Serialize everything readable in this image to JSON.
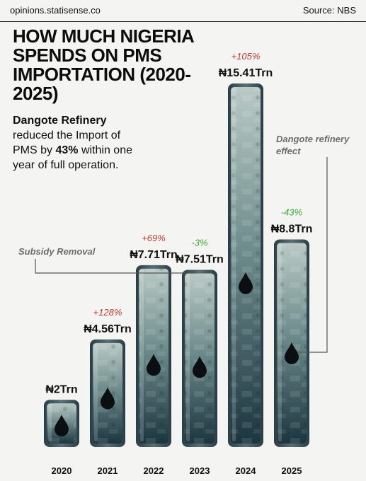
{
  "header": {
    "site": "opinions.statisense.co",
    "source": "Source: NBS"
  },
  "title": "HOW MUCH NIGERIA SPENDS ON PMS IMPORTATION (2020- 2025)",
  "description": {
    "strong1": "Dangote Refinery",
    "text1": " reduced the Import of PMS by ",
    "strong2": "43%",
    "text2": " within one year of full operation."
  },
  "annotations": {
    "subsidy": "Subsidy Removal",
    "dangote": "Dangote refinery effect"
  },
  "colors": {
    "bar_top": "#b7c7c2",
    "bar_bottom": "#1f3a44",
    "increase": "#c0392b",
    "decrease": "#3aa635"
  },
  "chart_data": {
    "type": "bar",
    "unit": "Trn",
    "categories": [
      "2020",
      "2021",
      "2022",
      "2023",
      "2024",
      "2025"
    ],
    "values": [
      2,
      4.56,
      7.71,
      7.51,
      15.41,
      8.8
    ],
    "value_labels": [
      "₦2Trn",
      "₦4.56Trn",
      "₦7.71Trn",
      "₦7.51Trn",
      "₦15.41Trn",
      "₦8.8Trn"
    ],
    "change_labels": [
      "",
      "+128%",
      "+69%",
      "-3%",
      "+105%",
      "-43%"
    ],
    "change_direction": [
      "",
      "up",
      "up",
      "down",
      "up",
      "down"
    ],
    "icon": "oil-drop-icon",
    "ylim": [
      0,
      15.41
    ]
  }
}
